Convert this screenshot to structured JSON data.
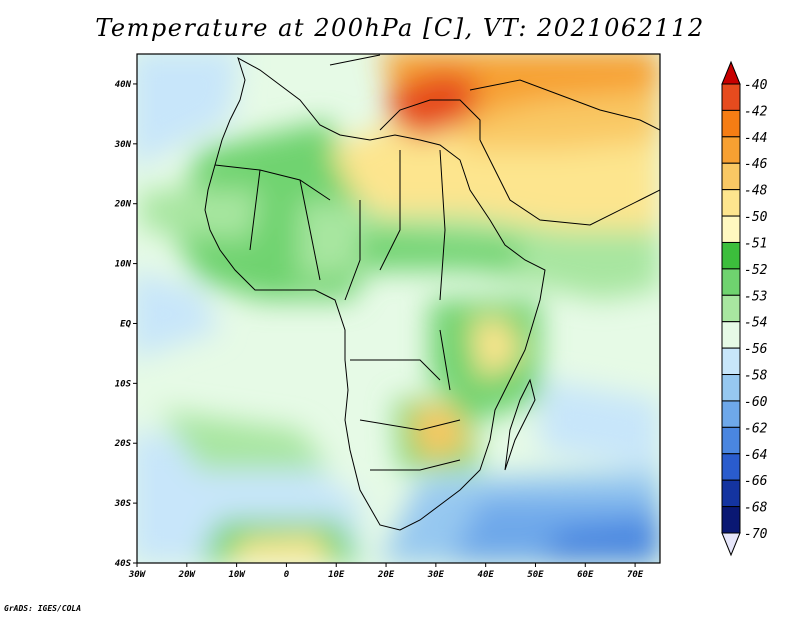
{
  "title": "Temperature at 200hPa [C], VT: 2021062112",
  "credit": "GrADS: IGES/COLA",
  "map": {
    "lon_range": [
      -30,
      75
    ],
    "lat_range": [
      -40,
      45
    ],
    "lon_ticks": [
      "30W",
      "20W",
      "10W",
      "0",
      "10E",
      "20E",
      "30E",
      "40E",
      "50E",
      "60E",
      "70E"
    ],
    "lat_ticks": [
      "40N",
      "30N",
      "20N",
      "10N",
      "EQ",
      "10S",
      "20S",
      "30S",
      "40S"
    ]
  },
  "colorbar": {
    "labels": [
      "-40",
      "-42",
      "-44",
      "-46",
      "-48",
      "-50",
      "-51",
      "-52",
      "-53",
      "-54",
      "-56",
      "-58",
      "-60",
      "-62",
      "-64",
      "-66",
      "-68",
      "-70"
    ],
    "colors": [
      "#c80000",
      "#e64b1e",
      "#f57d14",
      "#f7a032",
      "#f9c864",
      "#fde58e",
      "#fff8c0",
      "#3cbe3c",
      "#6fd36f",
      "#a8e6a0",
      "#e6fae6",
      "#c8e6fa",
      "#96c8f0",
      "#6ea8ea",
      "#4a86e0",
      "#2a5ccd",
      "#1434a0",
      "#0a1873",
      "#e6e6fa"
    ]
  }
}
